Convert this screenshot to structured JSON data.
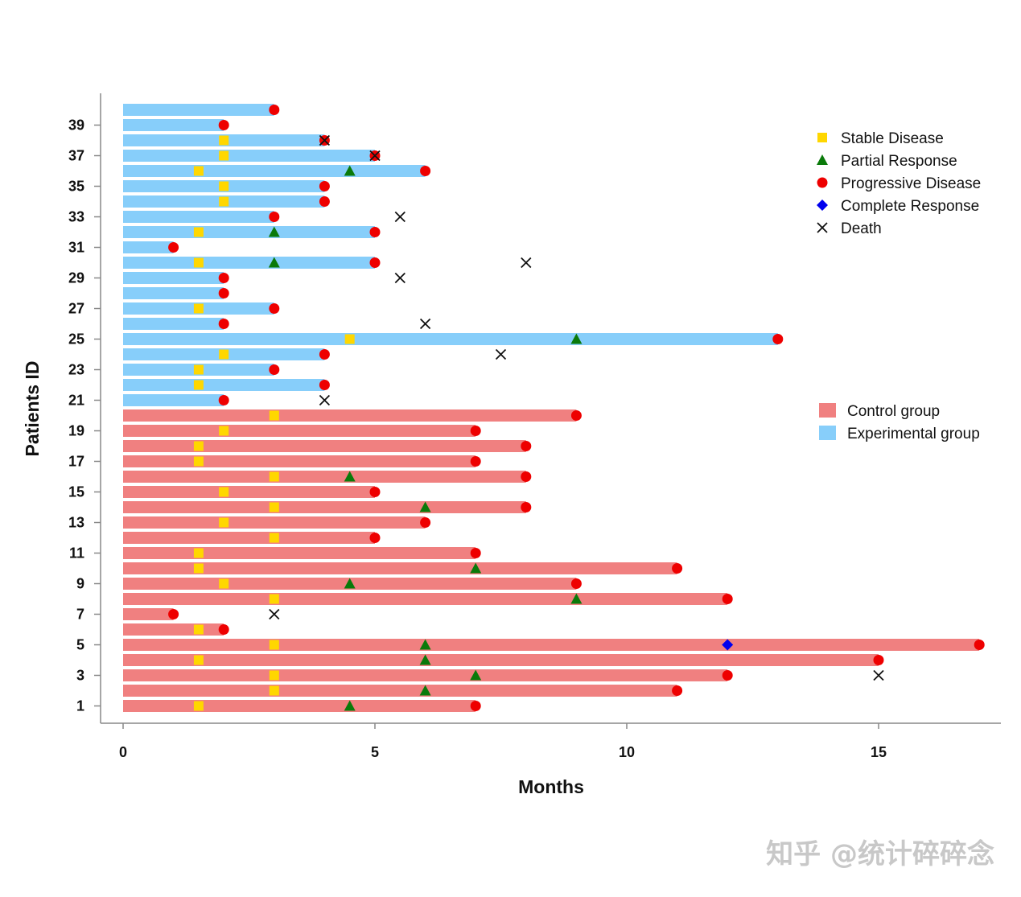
{
  "chart_data": {
    "type": "swimmer",
    "xlabel": "Months",
    "ylabel": "Patients ID",
    "xlim": [
      0,
      17.5
    ],
    "ylim": [
      0.5,
      40.5
    ],
    "xticks": [
      0,
      5,
      10,
      15
    ],
    "yticks": [
      1,
      3,
      5,
      7,
      9,
      11,
      13,
      15,
      17,
      19,
      21,
      23,
      25,
      27,
      29,
      31,
      33,
      35,
      37,
      39
    ],
    "groups": [
      {
        "name": "Control group",
        "color": "#f08080"
      },
      {
        "name": "Experimental group",
        "color": "#87cefa"
      }
    ],
    "marker_types": [
      {
        "key": "sd",
        "name": "Stable Disease",
        "shape": "square",
        "color": "#ffd700"
      },
      {
        "key": "pr",
        "name": "Partial Response",
        "shape": "triangle",
        "color": "#0a7a0a"
      },
      {
        "key": "pd",
        "name": "Progressive Disease",
        "shape": "circle",
        "color": "#ee0000"
      },
      {
        "key": "cr",
        "name": "Complete Response",
        "shape": "diamond",
        "color": "#0000ee"
      },
      {
        "key": "death",
        "name": "Death",
        "shape": "x",
        "color": "#111111"
      }
    ],
    "patients": [
      {
        "id": 1,
        "group": 0,
        "months": 7,
        "sd": 1.5,
        "pr": 4.5,
        "pd": 7
      },
      {
        "id": 2,
        "group": 0,
        "months": 11,
        "sd": 3,
        "pr": 6,
        "pd": 11
      },
      {
        "id": 3,
        "group": 0,
        "months": 12,
        "sd": 3,
        "pr": 7,
        "pd": 12,
        "death": 15
      },
      {
        "id": 4,
        "group": 0,
        "months": 15,
        "sd": 1.5,
        "pr": 6,
        "pd": 15
      },
      {
        "id": 5,
        "group": 0,
        "months": 17,
        "sd": 3,
        "pr": 6,
        "cr": 12,
        "pd": 17
      },
      {
        "id": 6,
        "group": 0,
        "months": 2,
        "sd": 1.5,
        "pd": 2
      },
      {
        "id": 7,
        "group": 0,
        "months": 1,
        "pd": 1,
        "death": 3
      },
      {
        "id": 8,
        "group": 0,
        "months": 12,
        "sd": 3,
        "pr": 9,
        "pd": 12
      },
      {
        "id": 9,
        "group": 0,
        "months": 9,
        "sd": 2,
        "pr": 4.5,
        "pd": 9
      },
      {
        "id": 10,
        "group": 0,
        "months": 11,
        "sd": 1.5,
        "pr": 7,
        "pd": 11
      },
      {
        "id": 11,
        "group": 0,
        "months": 7,
        "sd": 1.5,
        "pd": 7
      },
      {
        "id": 12,
        "group": 0,
        "months": 5,
        "sd": 3,
        "pd": 5
      },
      {
        "id": 13,
        "group": 0,
        "months": 6,
        "sd": 2,
        "pd": 6
      },
      {
        "id": 14,
        "group": 0,
        "months": 8,
        "sd": 3,
        "pr": 6,
        "pd": 8
      },
      {
        "id": 15,
        "group": 0,
        "months": 5,
        "sd": 2,
        "pd": 5
      },
      {
        "id": 16,
        "group": 0,
        "months": 8,
        "sd": 3,
        "pr": 4.5,
        "pd": 8
      },
      {
        "id": 17,
        "group": 0,
        "months": 7,
        "sd": 1.5,
        "pd": 7
      },
      {
        "id": 18,
        "group": 0,
        "months": 8,
        "sd": 1.5,
        "pd": 8
      },
      {
        "id": 19,
        "group": 0,
        "months": 7,
        "sd": 2,
        "pd": 7
      },
      {
        "id": 20,
        "group": 0,
        "months": 9,
        "sd": 3,
        "pd": 9
      },
      {
        "id": 21,
        "group": 1,
        "months": 2,
        "pd": 2,
        "death": 4
      },
      {
        "id": 22,
        "group": 1,
        "months": 4,
        "sd": 1.5,
        "pd": 4
      },
      {
        "id": 23,
        "group": 1,
        "months": 3,
        "sd": 1.5,
        "pd": 3
      },
      {
        "id": 24,
        "group": 1,
        "months": 4,
        "sd": 2,
        "pd": 4,
        "death": 7.5
      },
      {
        "id": 25,
        "group": 1,
        "months": 13,
        "sd": 4.5,
        "pr": 9,
        "pd": 13
      },
      {
        "id": 26,
        "group": 1,
        "months": 2,
        "pd": 2,
        "death": 6
      },
      {
        "id": 27,
        "group": 1,
        "months": 3,
        "sd": 1.5,
        "pd": 3
      },
      {
        "id": 28,
        "group": 1,
        "months": 2,
        "pd": 2
      },
      {
        "id": 29,
        "group": 1,
        "months": 2,
        "pd": 2,
        "death": 5.5
      },
      {
        "id": 30,
        "group": 1,
        "months": 5,
        "sd": 1.5,
        "pr": 3,
        "pd": 5,
        "death": 8
      },
      {
        "id": 31,
        "group": 1,
        "months": 1,
        "pd": 1
      },
      {
        "id": 32,
        "group": 1,
        "months": 5,
        "sd": 1.5,
        "pr": 3,
        "pd": 5
      },
      {
        "id": 33,
        "group": 1,
        "months": 3,
        "pd": 3,
        "death": 5.5
      },
      {
        "id": 34,
        "group": 1,
        "months": 4,
        "sd": 2,
        "pd": 4
      },
      {
        "id": 35,
        "group": 1,
        "months": 4,
        "sd": 2,
        "pd": 4
      },
      {
        "id": 36,
        "group": 1,
        "months": 6,
        "sd": 1.5,
        "pr": 4.5,
        "pd": 6
      },
      {
        "id": 37,
        "group": 1,
        "months": 5,
        "sd": 2,
        "pd": 5,
        "death": 5
      },
      {
        "id": 38,
        "group": 1,
        "months": 4,
        "sd": 2,
        "pd": 4,
        "death": 4
      },
      {
        "id": 39,
        "group": 1,
        "months": 2,
        "pd": 2
      },
      {
        "id": 40,
        "group": 1,
        "months": 3,
        "pd": 3
      }
    ]
  },
  "watermark": "知乎 @统计碎碎念"
}
